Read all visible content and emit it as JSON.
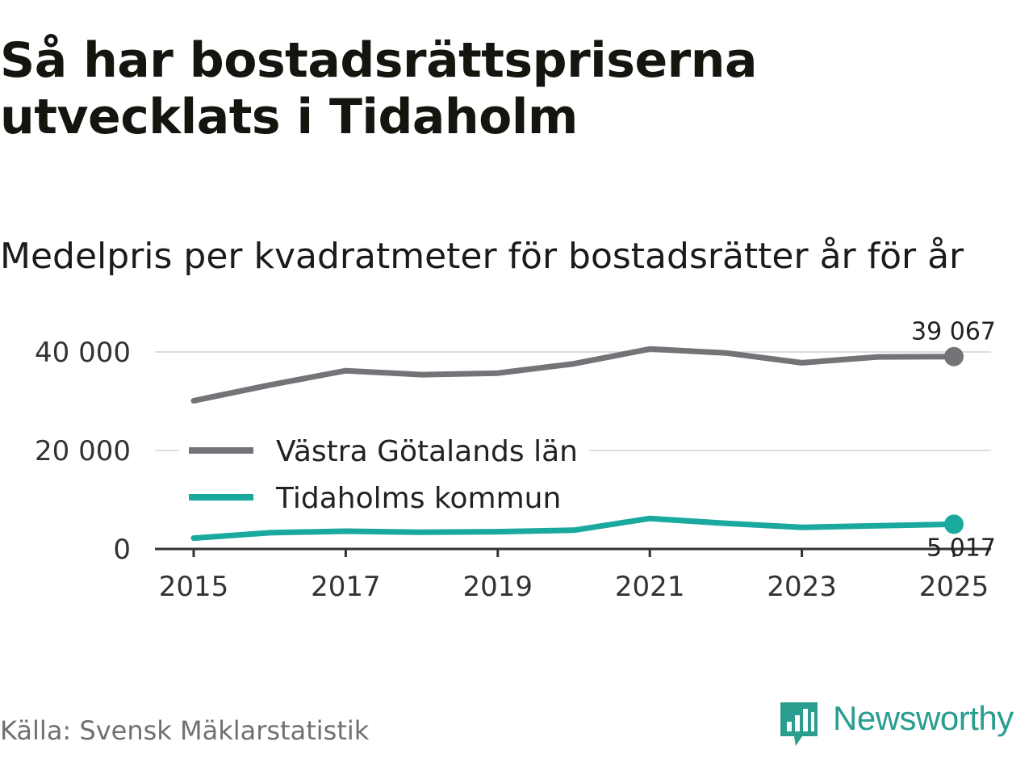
{
  "title": "Så har bostadsrättspriserna utvecklats i Tidaholm",
  "subtitle": "Medelpris per kvadratmeter för bostadsrätter år för år",
  "source": "Källa: Svensk Mäklarstatistik",
  "brand": {
    "name": "Newsworthy",
    "icon": "newsworthy-logo-icon",
    "color": "#2a9d8f"
  },
  "chart_data": {
    "type": "line",
    "x": [
      2015,
      2016,
      2017,
      2018,
      2019,
      2020,
      2021,
      2022,
      2023,
      2024,
      2025
    ],
    "ylim": [
      0,
      40000
    ],
    "y_ticks": [
      {
        "value": 0,
        "label": "0"
      },
      {
        "value": 20000,
        "label": "20 000"
      },
      {
        "value": 40000,
        "label": "40 000"
      }
    ],
    "x_ticks": [
      {
        "value": 2015,
        "label": "2015"
      },
      {
        "value": 2017,
        "label": "2017"
      },
      {
        "value": 2019,
        "label": "2019"
      },
      {
        "value": 2021,
        "label": "2021"
      },
      {
        "value": 2023,
        "label": "2023"
      },
      {
        "value": 2025,
        "label": "2025"
      }
    ],
    "series": [
      {
        "name": "Västra Götalands län",
        "color": "#747378",
        "values": [
          30100,
          33300,
          36200,
          35400,
          35700,
          37600,
          40600,
          39800,
          37800,
          39000,
          39067
        ],
        "end_label": "39 067"
      },
      {
        "name": "Tidaholms kommun",
        "color": "#1aa99e",
        "values": [
          2200,
          3300,
          3600,
          3400,
          3500,
          3800,
          6200,
          5200,
          4400,
          4700,
          5017
        ],
        "end_label": "5 017"
      }
    ],
    "legend": "inside-left",
    "grid": true,
    "xlabel": "",
    "ylabel": ""
  }
}
